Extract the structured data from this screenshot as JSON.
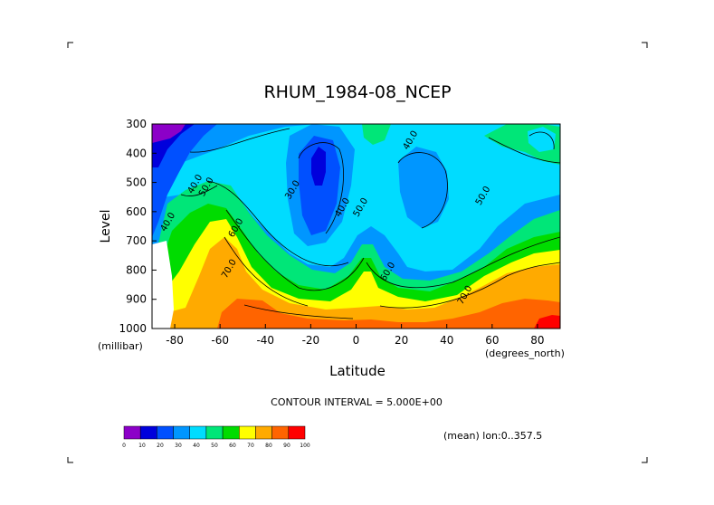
{
  "chart_data": {
    "type": "heatmap",
    "title": "RHUM_1984-08_NCEP",
    "xlabel": "Latitude",
    "ylabel": "Level",
    "y_units": "(millibar)",
    "x_units": "(degrees_north)",
    "x_ticks": [
      -80,
      -60,
      -40,
      -20,
      0,
      20,
      40,
      60,
      80
    ],
    "y_ticks": [
      300,
      400,
      500,
      600,
      700,
      800,
      900,
      1000
    ],
    "xlim": [
      -90,
      90
    ],
    "ylim": [
      1000,
      300
    ],
    "contour_interval_text": "CONTOUR INTERVAL = 5.000E+00",
    "mean_text": "(mean) lon:0..357.5",
    "colorbar": {
      "ticks": [
        "0",
        "10",
        "20",
        "30",
        "40",
        "50",
        "60",
        "70",
        "80",
        "90",
        "100"
      ],
      "colors": [
        "#8c00c8",
        "#0000dc",
        "#0050ff",
        "#0096ff",
        "#00dcff",
        "#00e678",
        "#00dc00",
        "#ffff00",
        "#ffaa00",
        "#ff6400",
        "#ff0000"
      ]
    },
    "contour_labels": [
      {
        "text": "40.0",
        "lat": -82,
        "lev": 640
      },
      {
        "text": "40.0",
        "lat": -70,
        "lev": 510
      },
      {
        "text": "50.0",
        "lat": -65,
        "lev": 520
      },
      {
        "text": "60.0",
        "lat": -52,
        "lev": 660
      },
      {
        "text": "70.0",
        "lat": -55,
        "lev": 800
      },
      {
        "text": "30.0",
        "lat": -27,
        "lev": 530
      },
      {
        "text": "40.0",
        "lat": -5,
        "lev": 590
      },
      {
        "text": "50.0",
        "lat": 3,
        "lev": 590
      },
      {
        "text": "60.0",
        "lat": 15,
        "lev": 810
      },
      {
        "text": "40.0",
        "lat": 25,
        "lev": 360
      },
      {
        "text": "50.0",
        "lat": 57,
        "lev": 550
      },
      {
        "text": "70.0",
        "lat": 49,
        "lev": 890
      }
    ]
  }
}
